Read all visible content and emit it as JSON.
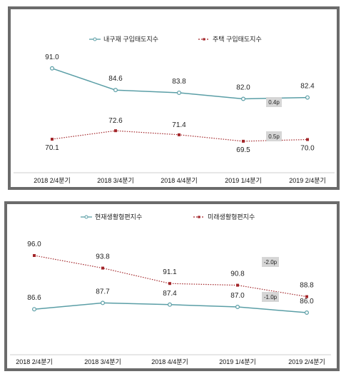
{
  "chart_data": [
    {
      "type": "line",
      "categories": [
        "2018 2/4분기",
        "2018 3/4분기",
        "2018 4/4분기",
        "2019 1/4분기",
        "2019 2/4분기"
      ],
      "series": [
        {
          "name": "내구재 구입태도지수",
          "values": [
            91.0,
            84.6,
            83.8,
            82.0,
            82.4
          ],
          "color": "#5a9ea6",
          "style": "solid"
        },
        {
          "name": "주택 구입태도지수",
          "values": [
            70.1,
            72.6,
            71.4,
            69.5,
            70.0
          ],
          "color": "#a3262a",
          "style": "dotted"
        }
      ],
      "labels": [
        [
          "91.0",
          "84.6",
          "83.8",
          "82.0",
          "82.4"
        ],
        [
          "70.1",
          "72.6",
          "71.4",
          "69.5",
          "70.0"
        ]
      ],
      "annotations": [
        "0.4p",
        "0.5p"
      ],
      "ylim": [
        60,
        100
      ],
      "grid": false,
      "legend_position": "top"
    },
    {
      "type": "line",
      "categories": [
        "2018 2/4분기",
        "2018 3/4분기",
        "2018 4/4분기",
        "2019 1/4분기",
        "2019 2/4분기"
      ],
      "series": [
        {
          "name": "현재생활형편지수",
          "values": [
            86.6,
            87.7,
            87.4,
            87.0,
            86.0
          ],
          "color": "#5a9ea6",
          "style": "solid"
        },
        {
          "name": "미래생활형편지수",
          "values": [
            96.0,
            93.8,
            91.1,
            90.8,
            88.8
          ],
          "color": "#a3262a",
          "style": "dotted"
        }
      ],
      "labels": [
        [
          "86.6",
          "87.7",
          "87.4",
          "87.0",
          "86.0"
        ],
        [
          "96.0",
          "93.8",
          "91.1",
          "90.8",
          "88.8"
        ]
      ],
      "annotations": [
        "-1.0p",
        "-2.0p"
      ],
      "ylim": [
        80,
        100
      ],
      "grid": false,
      "legend_position": "top"
    }
  ]
}
